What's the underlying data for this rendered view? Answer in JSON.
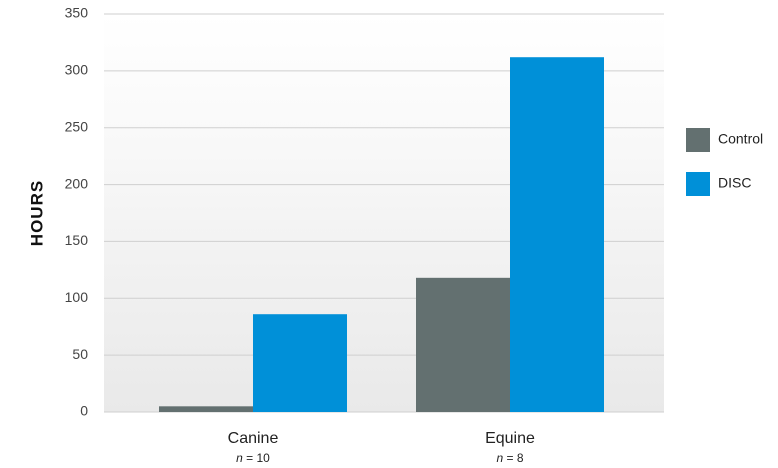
{
  "chart_data": {
    "type": "bar",
    "categories": [
      "Canine",
      "Equine"
    ],
    "category_notes": [
      {
        "italic": "n",
        "rest": " = 10"
      },
      {
        "italic": "n",
        "rest": " = 8"
      }
    ],
    "series": [
      {
        "name": "Control",
        "values": [
          5,
          118
        ],
        "color": "#637070"
      },
      {
        "name": "DISC",
        "values": [
          86,
          312
        ],
        "color": "#0090d8"
      }
    ],
    "ylabel": "HOURS",
    "ylim": [
      0,
      350
    ],
    "yticks": [
      0,
      50,
      100,
      150,
      200,
      250,
      300,
      350
    ],
    "grid": true,
    "legend_position": "right"
  }
}
